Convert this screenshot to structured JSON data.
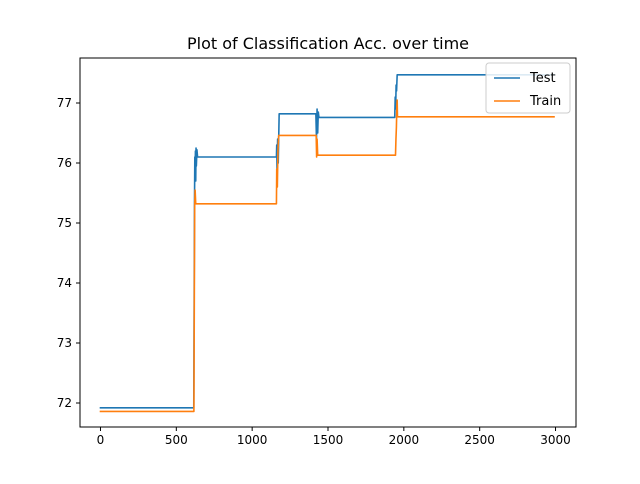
{
  "chart_data": {
    "type": "line",
    "title": "Plot of Classification Acc. over time",
    "xlabel": "",
    "ylabel": "",
    "xlim": [
      -135,
      3135
    ],
    "ylim": [
      71.6,
      77.75
    ],
    "x_ticks": [
      0,
      500,
      1000,
      1500,
      2000,
      2500,
      3000
    ],
    "x_tick_labels": [
      "0",
      "500",
      "1000",
      "1500",
      "2000",
      "2500",
      "3000"
    ],
    "y_ticks": [
      72,
      73,
      74,
      75,
      76,
      77
    ],
    "y_tick_labels": [
      "72",
      "73",
      "74",
      "75",
      "76",
      "77"
    ],
    "grid": false,
    "legend": {
      "position": "top-right"
    },
    "series": [
      {
        "name": "Test",
        "color": "#1f77b4",
        "points": [
          [
            0,
            71.92
          ],
          [
            615,
            71.92
          ],
          [
            620,
            75.4
          ],
          [
            622,
            76.1
          ],
          [
            624,
            75.9
          ],
          [
            626,
            76.2
          ],
          [
            628,
            75.7
          ],
          [
            630,
            76.25
          ],
          [
            632,
            75.95
          ],
          [
            636,
            76.22
          ],
          [
            640,
            76.1
          ],
          [
            1160,
            76.1
          ],
          [
            1162,
            76.3
          ],
          [
            1164,
            75.9
          ],
          [
            1168,
            76.4
          ],
          [
            1172,
            76.0
          ],
          [
            1178,
            76.82
          ],
          [
            1420,
            76.82
          ],
          [
            1424,
            76.4
          ],
          [
            1428,
            76.9
          ],
          [
            1432,
            76.5
          ],
          [
            1436,
            76.85
          ],
          [
            1440,
            76.76
          ],
          [
            1940,
            76.76
          ],
          [
            1943,
            77.1
          ],
          [
            1946,
            76.9
          ],
          [
            1949,
            77.3
          ],
          [
            1952,
            77.2
          ],
          [
            1956,
            77.47
          ],
          [
            2990,
            77.47
          ]
        ]
      },
      {
        "name": "Train",
        "color": "#ff7f0e",
        "points": [
          [
            0,
            71.86
          ],
          [
            616,
            71.86
          ],
          [
            621,
            75.3
          ],
          [
            624,
            75.55
          ],
          [
            628,
            75.32
          ],
          [
            1160,
            75.32
          ],
          [
            1162,
            75.9
          ],
          [
            1166,
            75.6
          ],
          [
            1170,
            76.2
          ],
          [
            1175,
            76.46
          ],
          [
            1422,
            76.46
          ],
          [
            1425,
            76.1
          ],
          [
            1428,
            76.4
          ],
          [
            1432,
            76.13
          ],
          [
            1945,
            76.13
          ],
          [
            1948,
            76.4
          ],
          [
            1951,
            76.6
          ],
          [
            1954,
            76.95
          ],
          [
            1956,
            77.05
          ],
          [
            1958,
            76.77
          ],
          [
            2990,
            76.77
          ]
        ]
      }
    ]
  }
}
